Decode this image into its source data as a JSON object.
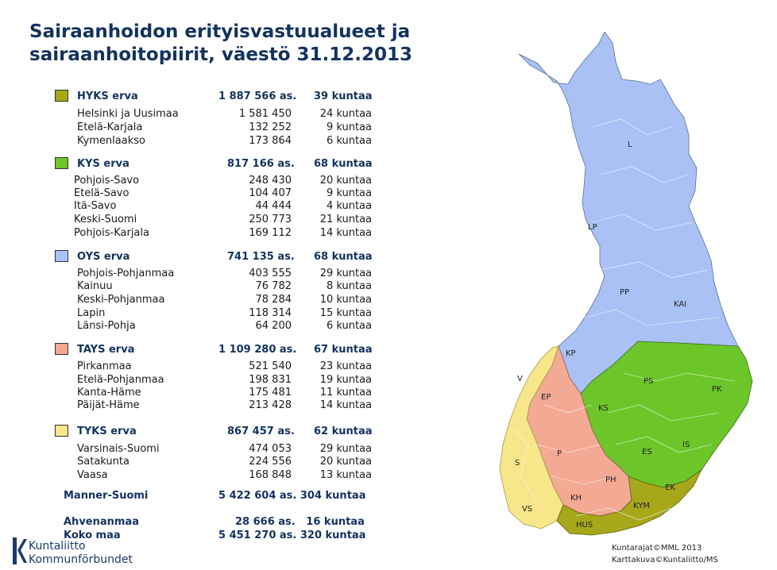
{
  "title_line1": "Sairaanhoidon erityisvastuualueet ja",
  "title_line2": "sairaanhoitopiirit, väestö 31.12.2013",
  "groups": [
    {
      "name": "HYKS erva",
      "pop": "1 887 566 as.",
      "kuntaa": "39 kuntaa",
      "color": "#a6a81a",
      "rows": [
        [
          "Helsinki ja Uusimaa",
          "1 581 450",
          "24 kuntaa"
        ],
        [
          "Etelä-Karjala",
          "132 252",
          "9 kuntaa"
        ],
        [
          "Kymenlaakso",
          "173 864",
          "6 kuntaa"
        ]
      ]
    },
    {
      "name": "KYS erva",
      "pop": "817 166 as.",
      "kuntaa": "68 kuntaa",
      "color": "#6cc62a",
      "rows": [
        [
          "Pohjois-Savo",
          "248 430",
          "20 kuntaa"
        ],
        [
          "Etelä-Savo",
          "104 407",
          "9 kuntaa"
        ],
        [
          "Itä-Savo",
          "44 444",
          "4 kuntaa"
        ],
        [
          "Keski-Suomi",
          "250 773",
          "21 kuntaa"
        ],
        [
          "Pohjois-Karjala",
          "169 112",
          "14 kuntaa"
        ]
      ]
    },
    {
      "name": "OYS erva",
      "pop": "741 135 as.",
      "kuntaa": "68 kuntaa",
      "color": "#a9c1f5",
      "rows": [
        [
          "Pohjois-Pohjanmaa",
          "403 555",
          "29 kuntaa"
        ],
        [
          "Kainuu",
          "76 782",
          "8 kuntaa"
        ],
        [
          "Keski-Pohjanmaa",
          "78 284",
          "10 kuntaa"
        ],
        [
          "Lapin",
          "118 314",
          "15 kuntaa"
        ],
        [
          "Länsi-Pohja",
          "64 200",
          "6 kuntaa"
        ]
      ]
    },
    {
      "name": "TAYS erva",
      "pop": "1 109 280 as.",
      "kuntaa": "67 kuntaa",
      "color": "#f3a994",
      "rows": [
        [
          "Pirkanmaa",
          "521 540",
          "23 kuntaa"
        ],
        [
          "Etelä-Pohjanmaa",
          "198 831",
          "19 kuntaa"
        ],
        [
          "Kanta-Häme",
          "175 481",
          "11 kuntaa"
        ],
        [
          "Päijät-Häme",
          "213 428",
          "14 kuntaa"
        ]
      ]
    },
    {
      "name": "TYKS erva",
      "pop": "867 457 as.",
      "kuntaa": "62 kuntaa",
      "color": "#f7e68a",
      "rows": [
        [
          "Varsinais-Suomi",
          "474 053",
          "29 kuntaa"
        ],
        [
          "Satakunta",
          "224 556",
          "20 kuntaa"
        ],
        [
          "Vaasa",
          "168 848",
          "13 kuntaa"
        ]
      ]
    }
  ],
  "totals": [
    {
      "name": "Manner-Suomi",
      "value": "5 422 604 as. 304 kuntaa"
    },
    {
      "name": "Ahvenanmaa",
      "value": "28 666 as.   16 kuntaa"
    },
    {
      "name": "Koko maa",
      "value": "5 451 270 as. 320 kuntaa"
    }
  ],
  "map_labels": [
    "L",
    "LP",
    "PP",
    "KAI",
    "KP",
    "PK",
    "PS",
    "KS",
    "EP",
    "V",
    "IS",
    "ES",
    "P",
    "S",
    "PH",
    "EK",
    "KH",
    "KYM",
    "VS",
    "HUS"
  ],
  "credits": [
    "Kuntarajat©MML 2013",
    "Karttakuva©Kuntaliitto/MS"
  ],
  "logo_line1": "Kuntaliitto",
  "logo_line2": "Kommunförbundet"
}
